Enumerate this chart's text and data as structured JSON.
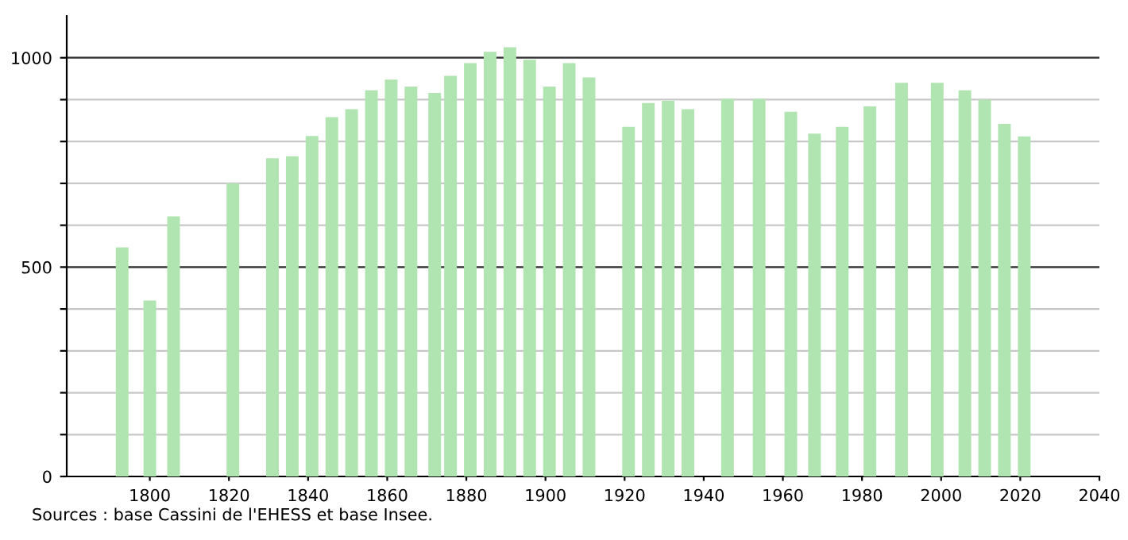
{
  "chart_data": {
    "type": "bar",
    "x": [
      1793,
      1800,
      1806,
      1821,
      1831,
      1836,
      1841,
      1846,
      1851,
      1856,
      1861,
      1866,
      1872,
      1876,
      1881,
      1886,
      1891,
      1896,
      1901,
      1906,
      1911,
      1921,
      1926,
      1931,
      1936,
      1946,
      1954,
      1962,
      1968,
      1975,
      1982,
      1990,
      1999,
      2006,
      2011,
      2016,
      2021
    ],
    "values": [
      547,
      420,
      621,
      700,
      760,
      765,
      813,
      858,
      877,
      922,
      948,
      931,
      916,
      957,
      987,
      1014,
      1025,
      995,
      931,
      987,
      953,
      835,
      892,
      897,
      877,
      902,
      902,
      871,
      819,
      835,
      884,
      940,
      940,
      922,
      900,
      842,
      812
    ],
    "color": "#b0e4b0",
    "xlim": [
      1779,
      2040
    ],
    "xticks": [
      1800,
      1820,
      1840,
      1860,
      1880,
      1900,
      1920,
      1940,
      1960,
      1980,
      2000,
      2020,
      2040
    ],
    "ylim": [
      0,
      1100
    ],
    "yticks": [
      0,
      {
        "value": 100,
        "label": null
      },
      {
        "value": 200,
        "label": null
      },
      {
        "value": 300,
        "label": null
      },
      {
        "value": 400,
        "label": null
      },
      500,
      {
        "value": 600,
        "label": null
      },
      {
        "value": 700,
        "label": null
      },
      {
        "value": 800,
        "label": null
      },
      {
        "value": 900,
        "label": null
      },
      1000
    ],
    "grid": "y",
    "annotations": [
      "Sources : base Cassini de l'EHESS et base Insee."
    ]
  }
}
